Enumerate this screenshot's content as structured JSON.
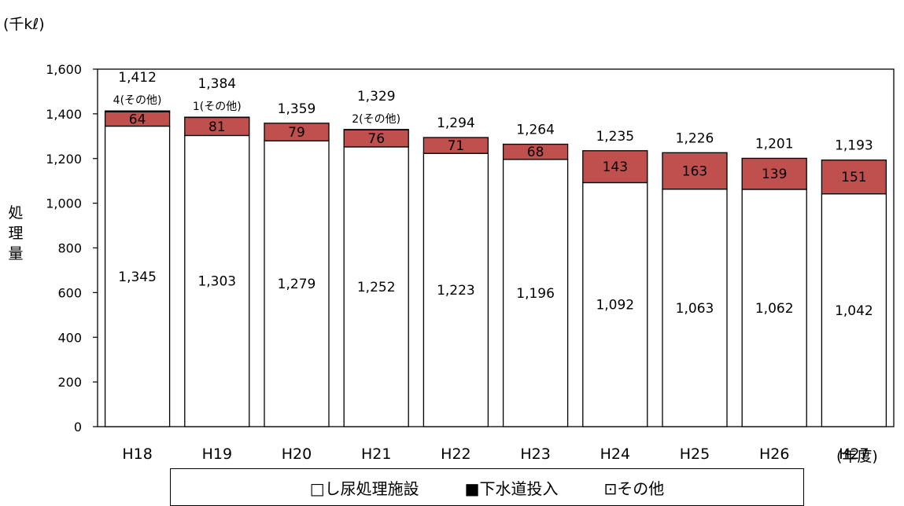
{
  "chart_data": {
    "type": "bar",
    "stacked": true,
    "unit_label": "(千kℓ)",
    "ylabel": "処理量",
    "xunit": "(年度)",
    "ylim": [
      0,
      1600
    ],
    "yticks": [
      "0",
      "200",
      "400",
      "600",
      "800",
      "1,000",
      "1,200",
      "1,400",
      "1,600"
    ],
    "categories": [
      "H18",
      "H19",
      "H20",
      "H21",
      "H22",
      "H23",
      "H24",
      "H25",
      "H26",
      "H27"
    ],
    "series": [
      {
        "name": "し尿処理施設",
        "color": "#ffffff",
        "values": [
          1345,
          1303,
          1279,
          1252,
          1223,
          1196,
          1092,
          1063,
          1062,
          1042
        ],
        "labels": [
          "1,345",
          "1,303",
          "1,279",
          "1,252",
          "1,223",
          "1,196",
          "1,092",
          "1,063",
          "1,062",
          "1,042"
        ]
      },
      {
        "name": "下水道投入",
        "color": "#c0504d",
        "values": [
          64,
          81,
          79,
          76,
          71,
          68,
          143,
          163,
          139,
          151
        ],
        "labels": [
          "64",
          "81",
          "79",
          "76",
          "71",
          "68",
          "143",
          "163",
          "139",
          "151"
        ]
      },
      {
        "name": "その他",
        "color": "#ffffff",
        "values": [
          4,
          1,
          0,
          2,
          0,
          0,
          0,
          0,
          0,
          0
        ],
        "labels": [
          "4(その他)",
          "1(その他)",
          "",
          "2(その他)",
          "",
          "",
          "",
          "",
          "",
          ""
        ]
      }
    ],
    "totals": [
      "1,412",
      "1,384",
      "1,359",
      "1,329",
      "1,294",
      "1,264",
      "1,235",
      "1,226",
      "1,201",
      "1,193"
    ],
    "legend": [
      "□し尿処理施設",
      "■下水道投入",
      "⊡その他"
    ],
    "legend_position": "bottom",
    "grid": false
  }
}
